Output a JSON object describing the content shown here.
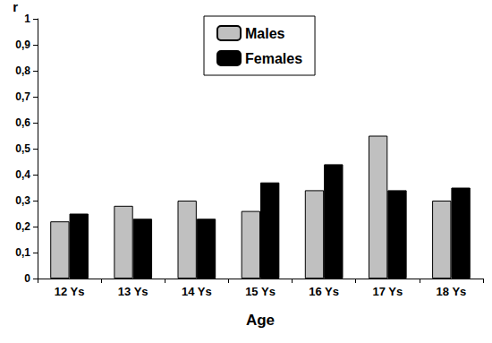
{
  "chart_data": {
    "type": "bar",
    "y_label": "r",
    "x_label": "Age",
    "categories": [
      "12 Ys",
      "13 Ys",
      "14 Ys",
      "15 Ys",
      "16 Ys",
      "17 Ys",
      "18 Ys"
    ],
    "series": [
      {
        "name": "Males",
        "color": "#c0c0c0",
        "values": [
          0.22,
          0.28,
          0.3,
          0.26,
          0.34,
          0.55,
          0.3
        ]
      },
      {
        "name": "Females",
        "color": "#000000",
        "values": [
          0.25,
          0.23,
          0.23,
          0.37,
          0.44,
          0.34,
          0.35
        ]
      }
    ],
    "ylim": [
      0,
      1
    ],
    "yticks": [
      0,
      {
        "value": 0.1,
        "label": "0,1"
      },
      {
        "value": 0.2,
        "label": "0,2"
      },
      {
        "value": 0.3,
        "label": "0,3"
      },
      {
        "value": 0.4,
        "label": "0,4"
      },
      {
        "value": 0.5,
        "label": "0,5"
      },
      {
        "value": 0.6,
        "label": "0,6"
      },
      {
        "value": 0.7,
        "label": "0,7"
      },
      {
        "value": 0.8,
        "label": "0,8"
      },
      {
        "value": 0.9,
        "label": "0,9"
      },
      1
    ],
    "grid": false,
    "legend": "top"
  }
}
